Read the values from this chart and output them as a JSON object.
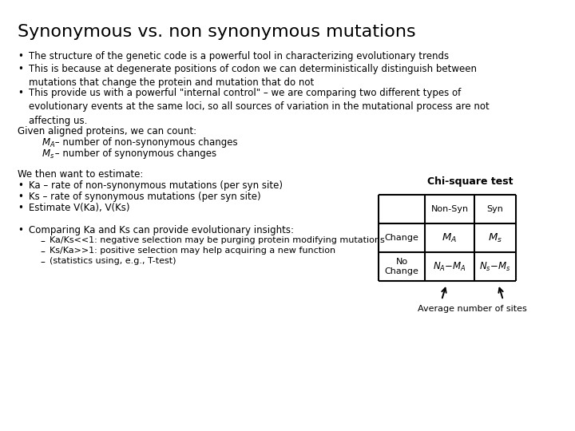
{
  "title": "Synonymous vs. non synonymous mutations",
  "background_color": "#ffffff",
  "title_fontsize": 16,
  "body_fontsize": 8.5,
  "bullet1": "The structure of the genetic code is a powerful tool in characterizing evolutionary trends",
  "bullet2": "This is because at degenerate positions of codon we can deterministically distinguish between\nmutations that change the protein and mutation that do not",
  "bullet3": "This provide us with a powerful \"internal control\" – we are comparing two different types of\nevolutionary events at the same loci, so all sources of variation in the mutational process are not\naffecting us.",
  "given_text": "Given aligned proteins, we can count:",
  "ma_desc": "– number of non-synonymous changes",
  "ms_desc": "– number of synonymous changes",
  "we_then": "We then want to estimate:",
  "ka_bullet": "Ka – rate of non-synonymous mutations (per syn site)",
  "ks_bullet": "Ks – rate of synonymous mutations (per syn site)",
  "estimate_bullet": "Estimate V(Ka), V(Ks)",
  "comparing_bullet": "Comparing Ka and Ks can provide evolutionary insights:",
  "sub1": "Ka/Ks<<1: negative selection may be purging protein modifying mutations",
  "sub2": "Ks/Ka>>1: positive selection may help acquiring a new function",
  "sub3": "(statistics using, e.g., T-test)",
  "table_title": "Chi-square test",
  "col1_header": "Non-Syn",
  "col2_header": "Syn",
  "row1_label": "Change",
  "row2_label": "No\nChange",
  "avg_label": "Average number of sites"
}
